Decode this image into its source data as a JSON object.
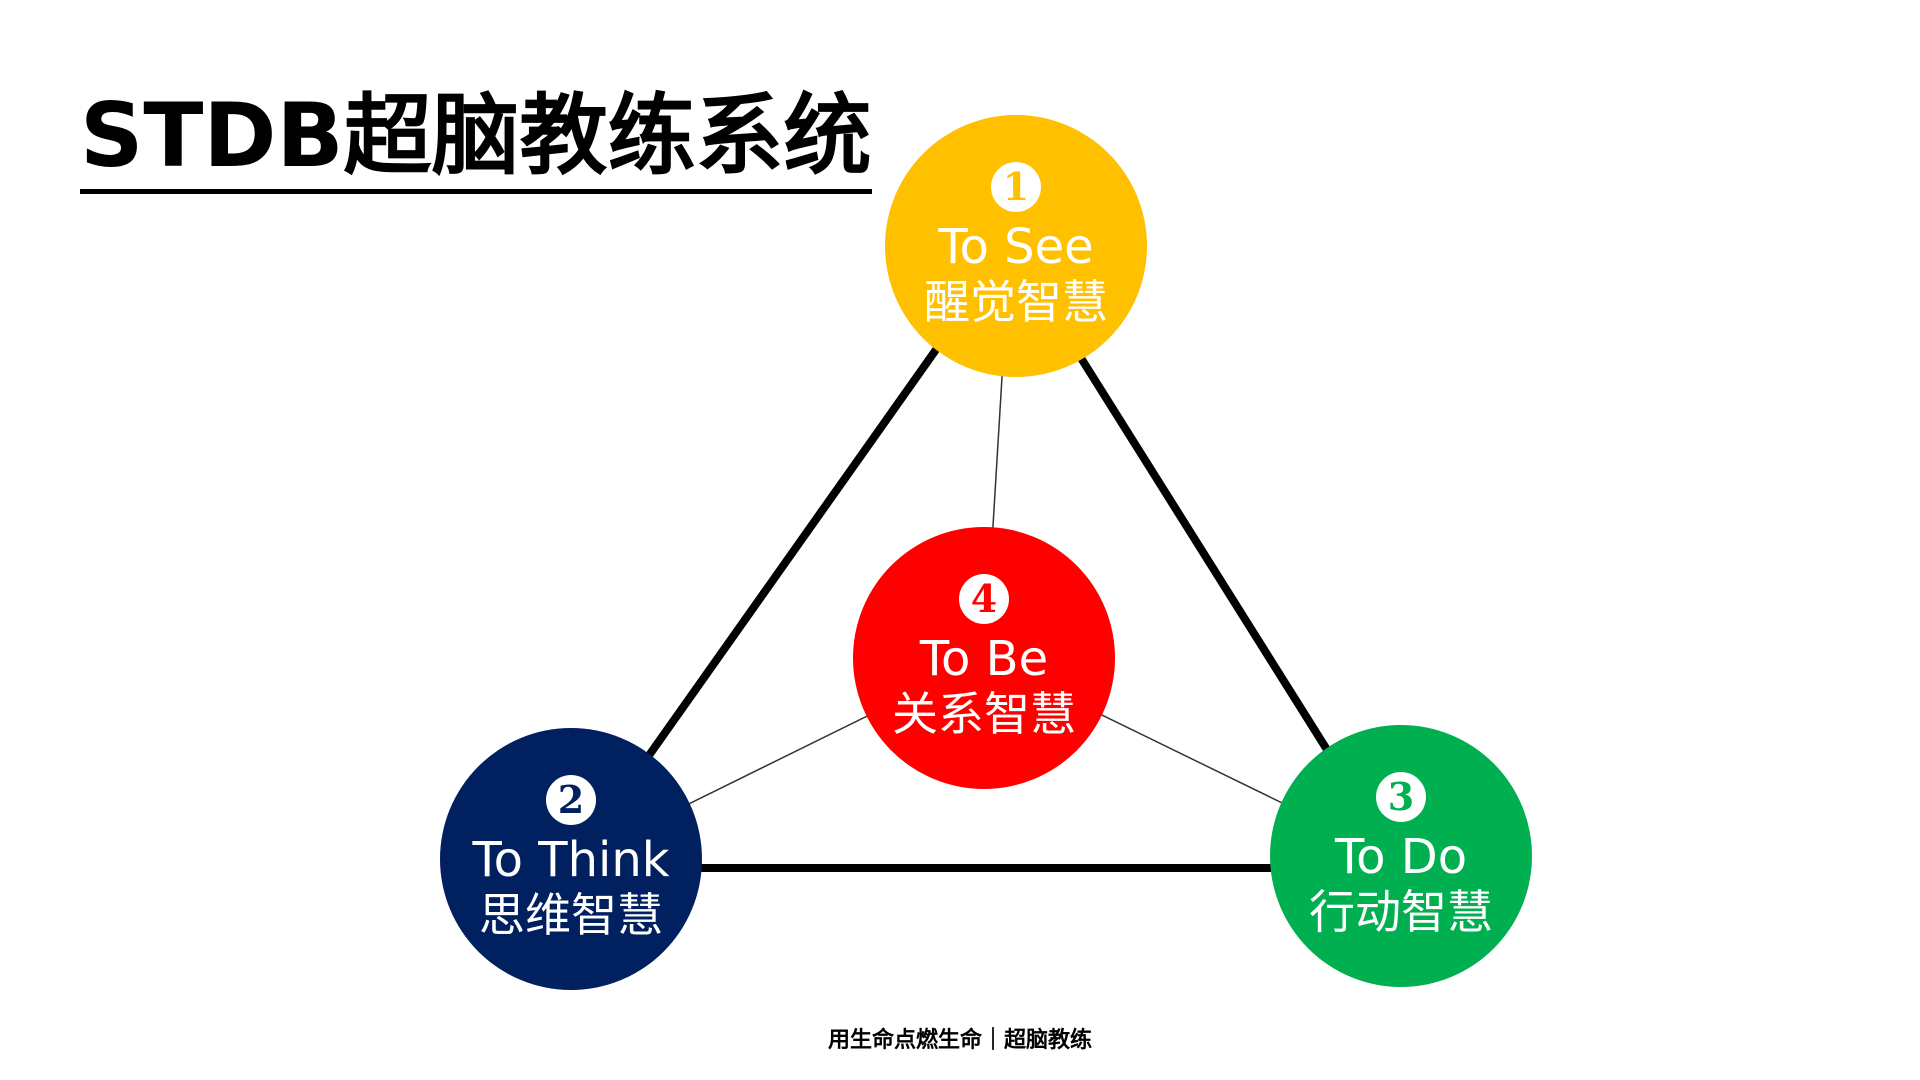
{
  "title": "STDB超脑教练系统",
  "nodes": [
    {
      "key": "see",
      "number": "1",
      "en": "To See",
      "zh": "醒觉智慧",
      "color": "#FFC000"
    },
    {
      "key": "think",
      "number": "2",
      "en": "To Think",
      "zh": "思维智慧",
      "color": "#002060"
    },
    {
      "key": "do",
      "number": "3",
      "en": "To Do",
      "zh": "行动智慧",
      "color": "#00B050"
    },
    {
      "key": "be",
      "number": "4",
      "en": "To Be",
      "zh": "关系智慧",
      "color": "#FF0000"
    }
  ],
  "footer": "用生命点燃生命｜超脑教练"
}
